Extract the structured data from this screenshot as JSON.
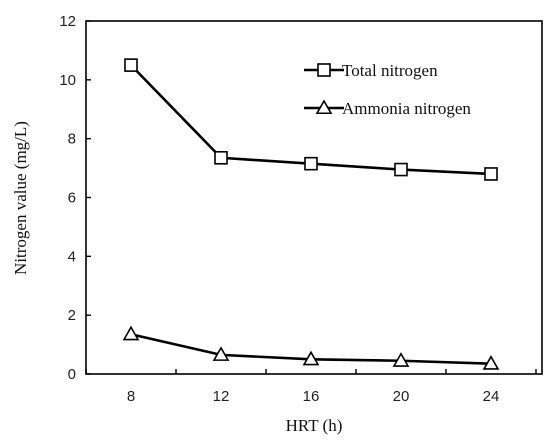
{
  "chart_data": {
    "type": "line",
    "x": [
      8,
      12,
      16,
      20,
      24
    ],
    "series": [
      {
        "name": "Total nitrogen",
        "marker": "square",
        "values": [
          10.5,
          7.35,
          7.15,
          6.95,
          6.8
        ]
      },
      {
        "name": "Ammonia nitrogen",
        "marker": "triangle",
        "values": [
          1.35,
          0.65,
          0.5,
          0.45,
          0.35
        ]
      }
    ],
    "title": "",
    "xlabel": "HRT (h)",
    "ylabel": "Nitrogen value (mg/L)",
    "xticks": [
      "8",
      "12",
      "16",
      "20",
      "24"
    ],
    "yticks": [
      "0",
      "2",
      "4",
      "6",
      "8",
      "10",
      "12"
    ],
    "ylim": [
      0,
      12
    ],
    "grid": false,
    "legend": "top-right",
    "colors": {
      "line": "#000000",
      "marker_fill": "#ffffff"
    }
  }
}
